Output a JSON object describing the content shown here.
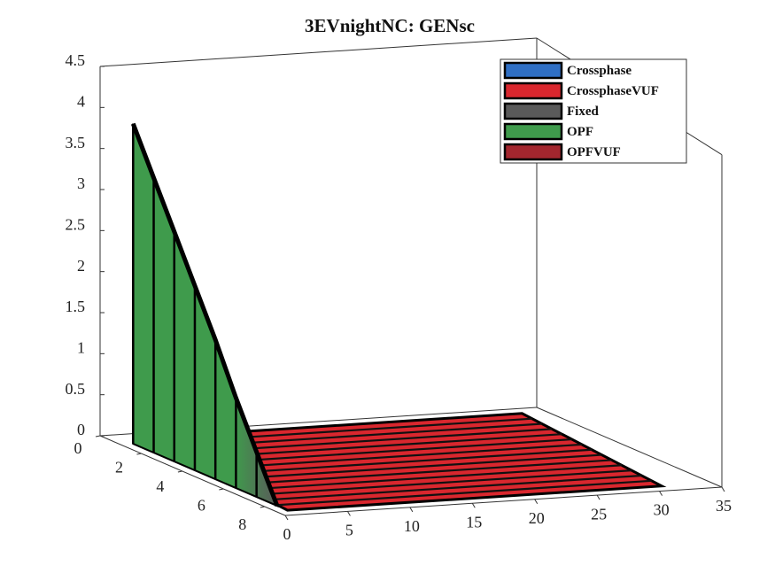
{
  "chart_data": {
    "type": "bar3",
    "title": "3EVnightNC: GENsc",
    "x": [
      1,
      2,
      3,
      4,
      5,
      6,
      7,
      8
    ],
    "series": [
      {
        "name": "Crossphase",
        "color": "#2f6fc4"
      },
      {
        "name": "CrossphaseVUF",
        "color": "#d9272e"
      },
      {
        "name": "Fixed",
        "color": "#5a5a5a"
      },
      {
        "name": "OPF",
        "color": "#3f9b4c",
        "values": [
          3.9,
          3.35,
          2.8,
          2.25,
          1.7,
          1.1,
          0.55,
          0
        ]
      },
      {
        "name": "OPFVUF",
        "color": "#a3262e"
      }
    ],
    "xlim": [
      0,
      9
    ],
    "xticks": [
      0,
      2,
      4,
      6,
      8
    ],
    "ylim": [
      0,
      35
    ],
    "yticks": [
      0,
      5,
      10,
      15,
      20,
      25,
      30,
      35
    ],
    "zlim": [
      0,
      4.5
    ],
    "zticks": [
      0,
      0.5,
      1,
      1.5,
      2,
      2.5,
      3,
      3.5,
      4,
      4.5
    ],
    "legend": "upper right"
  }
}
